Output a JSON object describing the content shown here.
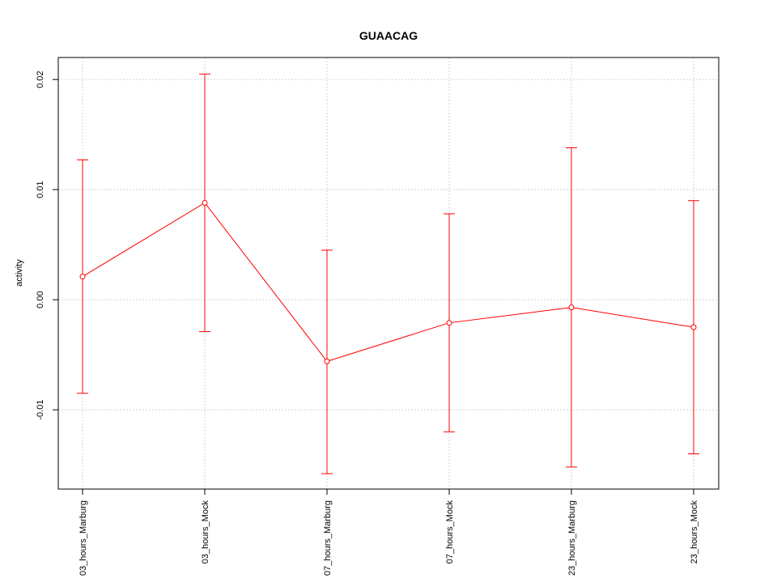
{
  "chart_data": {
    "type": "line",
    "title": "GUAACAG",
    "xlabel": "",
    "ylabel": "activity",
    "categories": [
      "03_hours_Marburg",
      "03_hours_Mock",
      "07_hours_Marburg",
      "07_hours_Mock",
      "23_hours_Marburg",
      "23_hours_Mock"
    ],
    "series": [
      {
        "values": [
          0.0021,
          0.0088,
          -0.0056,
          -0.0021,
          -0.0007,
          -0.0025
        ],
        "lower": [
          -0.0085,
          -0.0029,
          -0.0158,
          -0.012,
          -0.0152,
          -0.014
        ],
        "upper": [
          0.0127,
          0.0205,
          0.0045,
          0.0078,
          0.0138,
          0.009
        ]
      }
    ],
    "ylim": [
      -0.0172,
      0.022
    ],
    "yticks": [
      -0.01,
      0.0,
      0.01,
      0.02
    ],
    "ytick_labels": [
      "-0.01",
      "0.00",
      "0.01",
      "0.02"
    ],
    "grid": true,
    "colors": {
      "series": "#ff0000",
      "grid": "#d3d3d3",
      "axis": "#000000"
    }
  }
}
